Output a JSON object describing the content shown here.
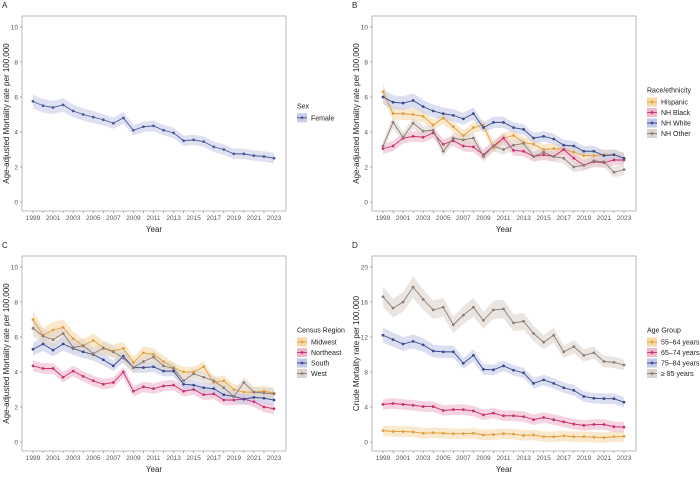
{
  "chart_data": [
    {
      "panel": "A",
      "type": "line",
      "xlabel": "Year",
      "ylabel": "Age-adjusted Mortality rate per 100,000",
      "ylim": [
        0,
        10
      ],
      "yticks": [
        0,
        2,
        4,
        6,
        8,
        10
      ],
      "legend_title": "Sex",
      "legend_placement": "right",
      "grid": false,
      "x": [
        1999,
        2000,
        2001,
        2002,
        2003,
        2004,
        2005,
        2006,
        2007,
        2008,
        2009,
        2010,
        2011,
        2012,
        2013,
        2014,
        2015,
        2016,
        2017,
        2018,
        2019,
        2020,
        2021,
        2022,
        2023
      ],
      "xticks": [
        "1999",
        "2001",
        "2003",
        "2005",
        "2007",
        "2009",
        "2011",
        "2013",
        "2015",
        "2017",
        "2019",
        "2021",
        "2023"
      ],
      "series": [
        {
          "name": "Female",
          "color": "#4a5a9c",
          "band": "#c9cdea",
          "values": [
            5.75,
            5.5,
            5.4,
            5.55,
            5.2,
            5.0,
            4.85,
            4.7,
            4.5,
            4.8,
            4.1,
            4.3,
            4.35,
            4.1,
            3.95,
            3.5,
            3.55,
            3.45,
            3.15,
            3.0,
            2.75,
            2.75,
            2.65,
            2.6,
            2.5
          ]
        }
      ]
    },
    {
      "panel": "B",
      "type": "line",
      "xlabel": "Year",
      "ylabel": "Age-adjusted Mortality rate per 100,000",
      "ylim": [
        0,
        10
      ],
      "yticks": [
        0,
        2,
        4,
        6,
        8,
        10
      ],
      "legend_title": "Race/ethnicity",
      "legend_placement": "right",
      "grid": false,
      "x": [
        1999,
        2000,
        2001,
        2002,
        2003,
        2004,
        2005,
        2006,
        2007,
        2008,
        2009,
        2010,
        2011,
        2012,
        2013,
        2014,
        2015,
        2016,
        2017,
        2018,
        2019,
        2020,
        2021,
        2022,
        2023
      ],
      "xticks": [
        "1999",
        "2001",
        "2003",
        "2005",
        "2007",
        "2009",
        "2011",
        "2013",
        "2015",
        "2017",
        "2019",
        "2021",
        "2023"
      ],
      "series": [
        {
          "name": "Hispanic",
          "color": "#e0a040",
          "band": "#f5d9a8",
          "values": [
            6.3,
            5.05,
            5.05,
            5.0,
            4.9,
            4.4,
            4.8,
            4.3,
            3.8,
            4.25,
            4.4,
            3.1,
            3.65,
            3.8,
            3.4,
            3.3,
            3.0,
            3.05,
            3.0,
            2.85,
            2.65,
            2.65,
            2.7,
            2.7,
            2.5
          ]
        },
        {
          "name": "NH Black",
          "color": "#c8306e",
          "band": "#efb6cc",
          "values": [
            3.05,
            3.2,
            3.65,
            3.75,
            3.7,
            3.95,
            3.3,
            3.5,
            3.2,
            3.15,
            2.7,
            3.2,
            3.65,
            2.95,
            2.9,
            2.6,
            2.7,
            2.6,
            3.0,
            2.5,
            2.1,
            2.3,
            2.25,
            2.4,
            2.4
          ]
        },
        {
          "name": "NH White",
          "color": "#3a4a8c",
          "band": "#c3c9e8",
          "values": [
            6.0,
            5.7,
            5.65,
            5.8,
            5.45,
            5.2,
            5.05,
            4.95,
            4.75,
            5.05,
            4.25,
            4.55,
            4.55,
            4.25,
            4.15,
            3.65,
            3.75,
            3.6,
            3.25,
            3.2,
            2.9,
            2.9,
            2.65,
            2.7,
            2.5
          ]
        },
        {
          "name": "NH Other",
          "color": "#8c7c74",
          "band": "#ddd3cf",
          "values": [
            3.2,
            4.55,
            3.7,
            4.5,
            4.05,
            4.1,
            2.9,
            3.65,
            3.55,
            3.65,
            2.6,
            3.2,
            3.0,
            3.25,
            3.35,
            2.6,
            2.85,
            2.6,
            2.5,
            2.0,
            2.1,
            2.35,
            2.3,
            1.7,
            1.85
          ]
        }
      ]
    },
    {
      "panel": "C",
      "type": "line",
      "xlabel": "Year",
      "ylabel": "Age-adjusted Mortality rate per 100,000",
      "ylim": [
        0,
        10
      ],
      "yticks": [
        0,
        2,
        4,
        6,
        8,
        10
      ],
      "legend_title": "Census Region",
      "legend_placement": "right",
      "grid": false,
      "x": [
        1999,
        2000,
        2001,
        2002,
        2003,
        2004,
        2005,
        2006,
        2007,
        2008,
        2009,
        2010,
        2011,
        2012,
        2013,
        2014,
        2015,
        2016,
        2017,
        2018,
        2019,
        2020,
        2021,
        2022,
        2023
      ],
      "xticks": [
        "1999",
        "2001",
        "2003",
        "2005",
        "2007",
        "2009",
        "2011",
        "2013",
        "2015",
        "2017",
        "2019",
        "2021",
        "2023"
      ],
      "series": [
        {
          "name": "Midwest",
          "color": "#e0a040",
          "band": "#f5d9a8",
          "values": [
            7.0,
            6.1,
            6.4,
            6.55,
            5.9,
            5.5,
            5.8,
            5.4,
            5.2,
            5.35,
            4.55,
            5.1,
            5.0,
            4.6,
            4.25,
            4.0,
            4.0,
            4.3,
            3.4,
            3.5,
            3.0,
            2.85,
            2.85,
            2.9,
            2.8
          ]
        },
        {
          "name": "Northeast",
          "color": "#c8306e",
          "band": "#efb6cc",
          "values": [
            4.35,
            4.2,
            4.2,
            3.7,
            4.05,
            3.75,
            3.5,
            3.3,
            3.4,
            4.0,
            2.9,
            3.15,
            3.05,
            3.2,
            3.25,
            2.9,
            3.0,
            2.7,
            2.75,
            2.4,
            2.4,
            2.45,
            2.3,
            2.0,
            1.9
          ]
        },
        {
          "name": "South",
          "color": "#3a4a8c",
          "band": "#c3c9e8",
          "values": [
            5.3,
            5.6,
            5.25,
            5.6,
            5.35,
            5.15,
            5.0,
            4.7,
            4.35,
            4.9,
            4.25,
            4.25,
            4.3,
            4.05,
            4.05,
            3.3,
            3.25,
            3.1,
            3.05,
            2.7,
            2.6,
            2.45,
            2.55,
            2.5,
            2.4
          ]
        },
        {
          "name": "West",
          "color": "#8c7c74",
          "band": "#ddd3cf",
          "values": [
            6.5,
            6.05,
            5.85,
            6.2,
            5.4,
            5.5,
            5.05,
            5.35,
            5.15,
            4.8,
            4.25,
            4.6,
            4.85,
            4.35,
            4.2,
            3.5,
            3.9,
            3.7,
            3.5,
            3.1,
            2.6,
            3.4,
            2.85,
            2.8,
            2.75
          ]
        }
      ]
    },
    {
      "panel": "D",
      "type": "line",
      "xlabel": "Year",
      "ylabel": "Crude Mortality rate per 100,000",
      "ylim": [
        0,
        20
      ],
      "yticks": [
        0,
        4,
        8,
        12,
        16,
        20
      ],
      "legend_title": "Age Group",
      "legend_placement": "right",
      "grid": false,
      "x": [
        1999,
        2000,
        2001,
        2002,
        2003,
        2004,
        2005,
        2006,
        2007,
        2008,
        2009,
        2010,
        2011,
        2012,
        2013,
        2014,
        2015,
        2016,
        2017,
        2018,
        2019,
        2020,
        2021,
        2022,
        2023
      ],
      "xticks": [
        "1999",
        "2001",
        "2003",
        "2005",
        "2007",
        "2009",
        "2011",
        "2013",
        "2015",
        "2017",
        "2019",
        "2021",
        "2023"
      ],
      "series": [
        {
          "name": "55–64 years",
          "color": "#e0a040",
          "band": "#f5d9a8",
          "values": [
            1.3,
            1.2,
            1.2,
            1.15,
            1.0,
            1.05,
            1.0,
            0.95,
            0.95,
            1.0,
            0.8,
            0.85,
            0.95,
            0.9,
            0.75,
            0.8,
            0.6,
            0.6,
            0.7,
            0.6,
            0.6,
            0.55,
            0.5,
            0.6,
            0.65
          ]
        },
        {
          "name": "65–74 years",
          "color": "#c8306e",
          "band": "#efb6cc",
          "values": [
            4.3,
            4.4,
            4.3,
            4.2,
            4.05,
            4.05,
            3.6,
            3.7,
            3.7,
            3.55,
            3.1,
            3.3,
            3.0,
            3.0,
            2.9,
            2.55,
            2.8,
            2.55,
            2.3,
            2.05,
            1.9,
            2.0,
            2.0,
            1.75,
            1.7
          ]
        },
        {
          "name": "75–84 years",
          "color": "#3a4a8c",
          "band": "#c3c9e8",
          "values": [
            12.2,
            11.7,
            11.2,
            11.5,
            11.1,
            10.4,
            10.3,
            10.3,
            9.0,
            9.9,
            8.3,
            8.25,
            8.7,
            8.2,
            7.9,
            6.7,
            7.1,
            6.7,
            6.2,
            5.9,
            5.2,
            5.0,
            4.95,
            4.95,
            4.55
          ]
        },
        {
          "name": "≥ 85 years",
          "color": "#8c7c74",
          "band": "#ddd3cf",
          "values": [
            16.6,
            15.3,
            16.0,
            17.7,
            16.3,
            15.1,
            15.4,
            13.4,
            14.5,
            15.4,
            13.9,
            15.1,
            15.2,
            13.6,
            13.8,
            12.4,
            11.4,
            12.2,
            10.3,
            10.9,
            9.9,
            10.2,
            9.2,
            9.1,
            8.8
          ]
        }
      ]
    }
  ]
}
